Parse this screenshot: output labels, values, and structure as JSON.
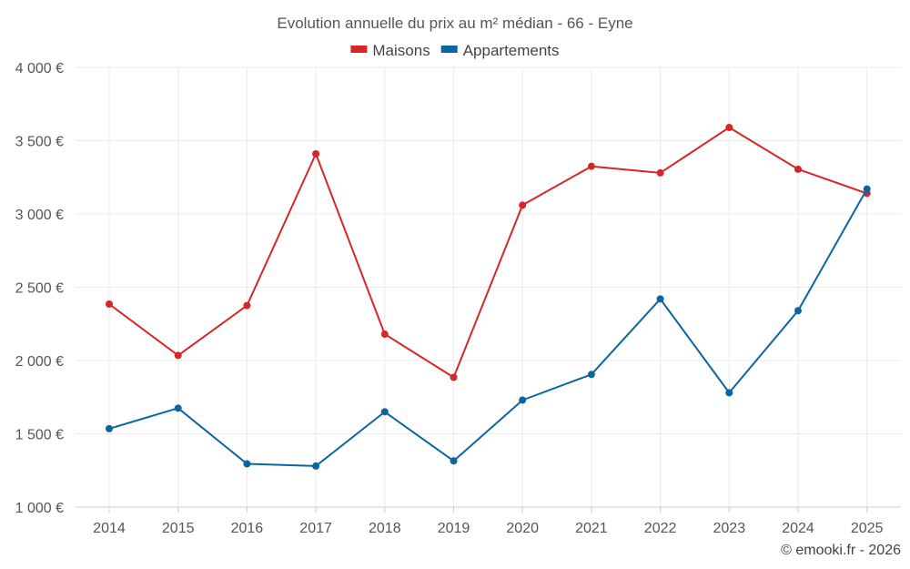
{
  "chart_data": {
    "type": "line",
    "title": "Evolution annuelle du prix au m² médian - 66 - Eyne",
    "xlabel": "",
    "ylabel": "",
    "categories": [
      "2014",
      "2015",
      "2016",
      "2017",
      "2018",
      "2019",
      "2020",
      "2021",
      "2022",
      "2023",
      "2024",
      "2025"
    ],
    "ylim": [
      1000,
      4000
    ],
    "yticks": [
      1000,
      1500,
      2000,
      2500,
      3000,
      3500,
      4000
    ],
    "ytick_labels": [
      "1 000 €",
      "1 500 €",
      "2 000 €",
      "2 500 €",
      "3 000 €",
      "3 500 €",
      "4 000 €"
    ],
    "grid": true,
    "legend_position": "top-center",
    "series": [
      {
        "name": "Maisons",
        "color": "#d62728",
        "values": [
          2385,
          2035,
          2375,
          3410,
          2180,
          1885,
          3060,
          3325,
          3280,
          3590,
          3305,
          3140
        ]
      },
      {
        "name": "Appartements",
        "color": "#0a66a0",
        "values": [
          1535,
          1675,
          1295,
          1280,
          1650,
          1315,
          1730,
          1905,
          2420,
          1780,
          2340,
          3170
        ]
      }
    ],
    "credit": "© emooki.fr - 2026"
  }
}
